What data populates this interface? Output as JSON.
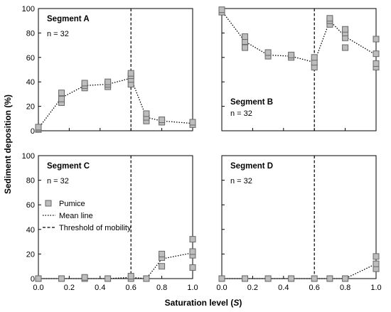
{
  "chart_data": {
    "type": "scatter",
    "xlabel": "Saturation level (S)",
    "xlabel_main": "Saturation level (",
    "xlabel_var": "S",
    "xlabel_close": ")",
    "ylabel": "Sediment deposition (%)",
    "xlim": [
      0,
      1
    ],
    "ylim": [
      0,
      100
    ],
    "x_ticks": [
      0.0,
      0.2,
      0.4,
      0.6,
      0.8,
      1.0
    ],
    "x_tick_labels": [
      "0.0",
      "0.2",
      "0.4",
      "0.6",
      "0.8",
      "1.0"
    ],
    "y_ticks": [
      0,
      20,
      40,
      60,
      80,
      100
    ],
    "y_tick_labels": [
      "0",
      "20",
      "40",
      "60",
      "80",
      "100"
    ],
    "threshold_x": 0.6,
    "grid": false,
    "legend": {
      "placement": "inside Segment C, left",
      "items": [
        {
          "label": "Pumice",
          "marker": "square"
        },
        {
          "label": "Mean line",
          "style": "dotted"
        },
        {
          "label": "Threshold of mobility",
          "style": "dashed"
        }
      ]
    },
    "colors": {
      "marker_fill": "#bdbdbd",
      "marker_edge": "#666666",
      "line": "#000000"
    },
    "panels": [
      {
        "title": "Segment A",
        "n_label": "n = 32",
        "points": [
          [
            0,
            1
          ],
          [
            0,
            2
          ],
          [
            0,
            3
          ],
          [
            0.15,
            23
          ],
          [
            0.15,
            26
          ],
          [
            0.15,
            31
          ],
          [
            0.3,
            35
          ],
          [
            0.3,
            37
          ],
          [
            0.3,
            39
          ],
          [
            0.45,
            36
          ],
          [
            0.45,
            38
          ],
          [
            0.45,
            40
          ],
          [
            0.6,
            38
          ],
          [
            0.6,
            42
          ],
          [
            0.6,
            45
          ],
          [
            0.6,
            47
          ],
          [
            0.7,
            8
          ],
          [
            0.7,
            11
          ],
          [
            0.7,
            14
          ],
          [
            0.8,
            7
          ],
          [
            0.8,
            9
          ],
          [
            1.0,
            5
          ],
          [
            1.0,
            7
          ]
        ],
        "mean": [
          [
            0,
            2
          ],
          [
            0.15,
            27
          ],
          [
            0.3,
            37
          ],
          [
            0.45,
            38
          ],
          [
            0.6,
            43
          ],
          [
            0.7,
            11
          ],
          [
            0.8,
            8
          ],
          [
            1.0,
            6
          ]
        ]
      },
      {
        "title": "Segment B",
        "n_label": "n = 32",
        "points": [
          [
            0,
            97
          ],
          [
            0,
            99
          ],
          [
            0.15,
            68
          ],
          [
            0.15,
            73
          ],
          [
            0.15,
            77
          ],
          [
            0.3,
            61
          ],
          [
            0.3,
            64
          ],
          [
            0.45,
            60
          ],
          [
            0.45,
            62
          ],
          [
            0.6,
            52
          ],
          [
            0.6,
            56
          ],
          [
            0.6,
            60
          ],
          [
            0.7,
            87
          ],
          [
            0.7,
            90
          ],
          [
            0.7,
            92
          ],
          [
            0.8,
            68
          ],
          [
            0.8,
            76
          ],
          [
            0.8,
            80
          ],
          [
            0.8,
            83
          ],
          [
            1.0,
            52
          ],
          [
            1.0,
            55
          ],
          [
            1.0,
            63
          ],
          [
            1.0,
            75
          ]
        ],
        "mean": [
          [
            0,
            98
          ],
          [
            0.15,
            73
          ],
          [
            0.3,
            62
          ],
          [
            0.45,
            61
          ],
          [
            0.6,
            56
          ],
          [
            0.7,
            90
          ],
          [
            0.8,
            77
          ],
          [
            1.0,
            62
          ]
        ]
      },
      {
        "title": "Segment C",
        "n_label": "n = 32",
        "points": [
          [
            0,
            0
          ],
          [
            0.15,
            0
          ],
          [
            0.3,
            0
          ],
          [
            0.3,
            1
          ],
          [
            0.45,
            0
          ],
          [
            0.6,
            0
          ],
          [
            0.6,
            2
          ],
          [
            0.7,
            0
          ],
          [
            0.8,
            10
          ],
          [
            0.8,
            17
          ],
          [
            0.8,
            20
          ],
          [
            1.0,
            9
          ],
          [
            1.0,
            19
          ],
          [
            1.0,
            22
          ],
          [
            1.0,
            32
          ]
        ],
        "mean": [
          [
            0,
            0
          ],
          [
            0.15,
            0
          ],
          [
            0.3,
            0
          ],
          [
            0.45,
            0
          ],
          [
            0.6,
            1
          ],
          [
            0.7,
            0
          ],
          [
            0.8,
            16
          ],
          [
            1.0,
            21
          ]
        ]
      },
      {
        "title": "Segment D",
        "n_label": "n = 32",
        "points": [
          [
            0,
            0
          ],
          [
            0.15,
            0
          ],
          [
            0.3,
            0
          ],
          [
            0.45,
            0
          ],
          [
            0.6,
            0
          ],
          [
            0.7,
            0
          ],
          [
            0.8,
            0
          ],
          [
            1.0,
            8
          ],
          [
            1.0,
            12
          ],
          [
            1.0,
            18
          ]
        ],
        "mean": [
          [
            0,
            0
          ],
          [
            0.15,
            0
          ],
          [
            0.3,
            0
          ],
          [
            0.45,
            0
          ],
          [
            0.6,
            0
          ],
          [
            0.7,
            0
          ],
          [
            0.8,
            0
          ],
          [
            1.0,
            12
          ]
        ]
      }
    ]
  }
}
